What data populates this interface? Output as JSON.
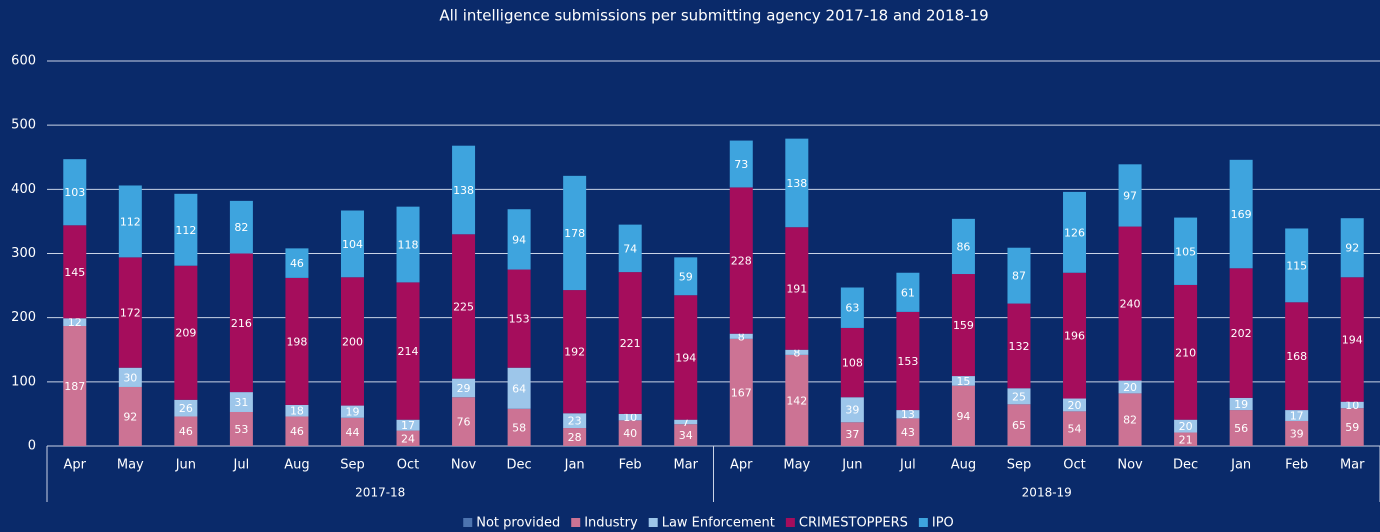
{
  "chart_data": {
    "type": "stacked_bar",
    "title": "All intelligence submissions per submitting agency 2017-18 and 2018-19",
    "categories": [
      "Apr",
      "May",
      "Jun",
      "Jul",
      "Aug",
      "Sep",
      "Oct",
      "Nov",
      "Dec",
      "Jan",
      "Feb",
      "Mar",
      "Apr",
      "May",
      "Jun",
      "Jul",
      "Aug",
      "Sep",
      "Oct",
      "Nov",
      "Dec",
      "Jan",
      "Feb",
      "Mar"
    ],
    "category_groups": [
      {
        "name": "2017-18",
        "size": 12
      },
      {
        "name": "2018-19",
        "size": 12
      }
    ],
    "series": [
      {
        "name": "Not provided",
        "color": "#4d74b0",
        "values": [
          0,
          0,
          0,
          0,
          0,
          0,
          0,
          0,
          0,
          0,
          0,
          0,
          0,
          0,
          0,
          0,
          0,
          0,
          0,
          0,
          0,
          0,
          0,
          0
        ]
      },
      {
        "name": "Industry",
        "color": "#cc7394",
        "values": [
          187,
          92,
          46,
          53,
          46,
          44,
          24,
          76,
          58,
          28,
          40,
          34,
          167,
          142,
          37,
          43,
          94,
          65,
          54,
          82,
          21,
          56,
          39,
          59
        ]
      },
      {
        "name": "Law Enforcement",
        "color": "#9dc6ea",
        "values": [
          12,
          30,
          26,
          31,
          18,
          19,
          17,
          29,
          64,
          23,
          10,
          7,
          8,
          8,
          39,
          13,
          15,
          25,
          20,
          20,
          20,
          19,
          17,
          10
        ]
      },
      {
        "name": "CRIMESTOPPERS",
        "color": "#a50d5c",
        "values": [
          145,
          172,
          209,
          216,
          198,
          200,
          214,
          225,
          153,
          192,
          221,
          194,
          228,
          191,
          108,
          153,
          159,
          132,
          196,
          240,
          210,
          202,
          168,
          194
        ]
      },
      {
        "name": "IPO",
        "color": "#3ea4de",
        "values": [
          103,
          112,
          112,
          82,
          46,
          104,
          118,
          138,
          94,
          178,
          74,
          59,
          73,
          138,
          63,
          61,
          86,
          87,
          126,
          97,
          105,
          169,
          115,
          92
        ]
      }
    ],
    "ylim": [
      0,
      600
    ],
    "yticks": [
      0,
      100,
      200,
      300,
      400,
      500,
      600
    ],
    "grid": true,
    "legend": "bottom"
  }
}
